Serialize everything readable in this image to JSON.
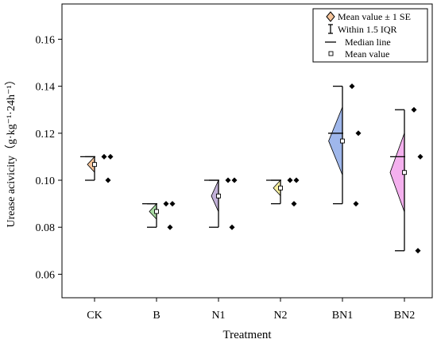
{
  "chart_data": {
    "type": "half-violin box plot",
    "xlabel": "Treatment",
    "ylabel": "Urease acivicity（g·kg⁻¹·24h⁻¹）",
    "ylim": [
      0.05,
      0.175
    ],
    "yticks": [
      0.06,
      0.08,
      0.1,
      0.12,
      0.14,
      0.16
    ],
    "ytick_labels": [
      "0.06",
      "0.08",
      "0.10",
      "0.12",
      "0.14",
      "0.16"
    ],
    "legend_position": "top-right",
    "legend": [
      {
        "symbol": "diamond",
        "label": "Mean value ± 1 SE"
      },
      {
        "symbol": "whisker",
        "label": "Within 1.5 IQR"
      },
      {
        "symbol": "line",
        "label": "Median line"
      },
      {
        "symbol": "square",
        "label": "Mean value"
      }
    ],
    "categories": [
      "CK",
      "B",
      "N1",
      "N2",
      "BN1",
      "BN2"
    ],
    "groups": [
      {
        "name": "CK",
        "color": "#f6c49a",
        "mean": 0.1067,
        "se": 0.0033,
        "median": 0.11,
        "whisker": [
          0.1,
          0.11
        ],
        "points": [
          0.11,
          0.11,
          0.1
        ]
      },
      {
        "name": "B",
        "color": "#a9dba3",
        "mean": 0.0867,
        "se": 0.0033,
        "median": 0.09,
        "whisker": [
          0.08,
          0.09
        ],
        "points": [
          0.09,
          0.09,
          0.08
        ]
      },
      {
        "name": "N1",
        "color": "#c2b1d8",
        "mean": 0.0933,
        "se": 0.0067,
        "median": 0.1,
        "whisker": [
          0.08,
          0.1
        ],
        "points": [
          0.1,
          0.1,
          0.08
        ]
      },
      {
        "name": "N2",
        "color": "#fbf2a3",
        "mean": 0.0967,
        "se": 0.0033,
        "median": 0.1,
        "whisker": [
          0.09,
          0.1
        ],
        "points": [
          0.1,
          0.1,
          0.09
        ]
      },
      {
        "name": "BN1",
        "color": "#9fb7eb",
        "mean": 0.1167,
        "se": 0.0145,
        "median": 0.12,
        "whisker": [
          0.09,
          0.14
        ],
        "points": [
          0.14,
          0.12,
          0.09
        ]
      },
      {
        "name": "BN2",
        "color": "#f4b0ee",
        "mean": 0.1033,
        "se": 0.0168,
        "median": 0.11,
        "whisker": [
          0.07,
          0.13
        ],
        "points": [
          0.13,
          0.11,
          0.07
        ]
      }
    ]
  }
}
